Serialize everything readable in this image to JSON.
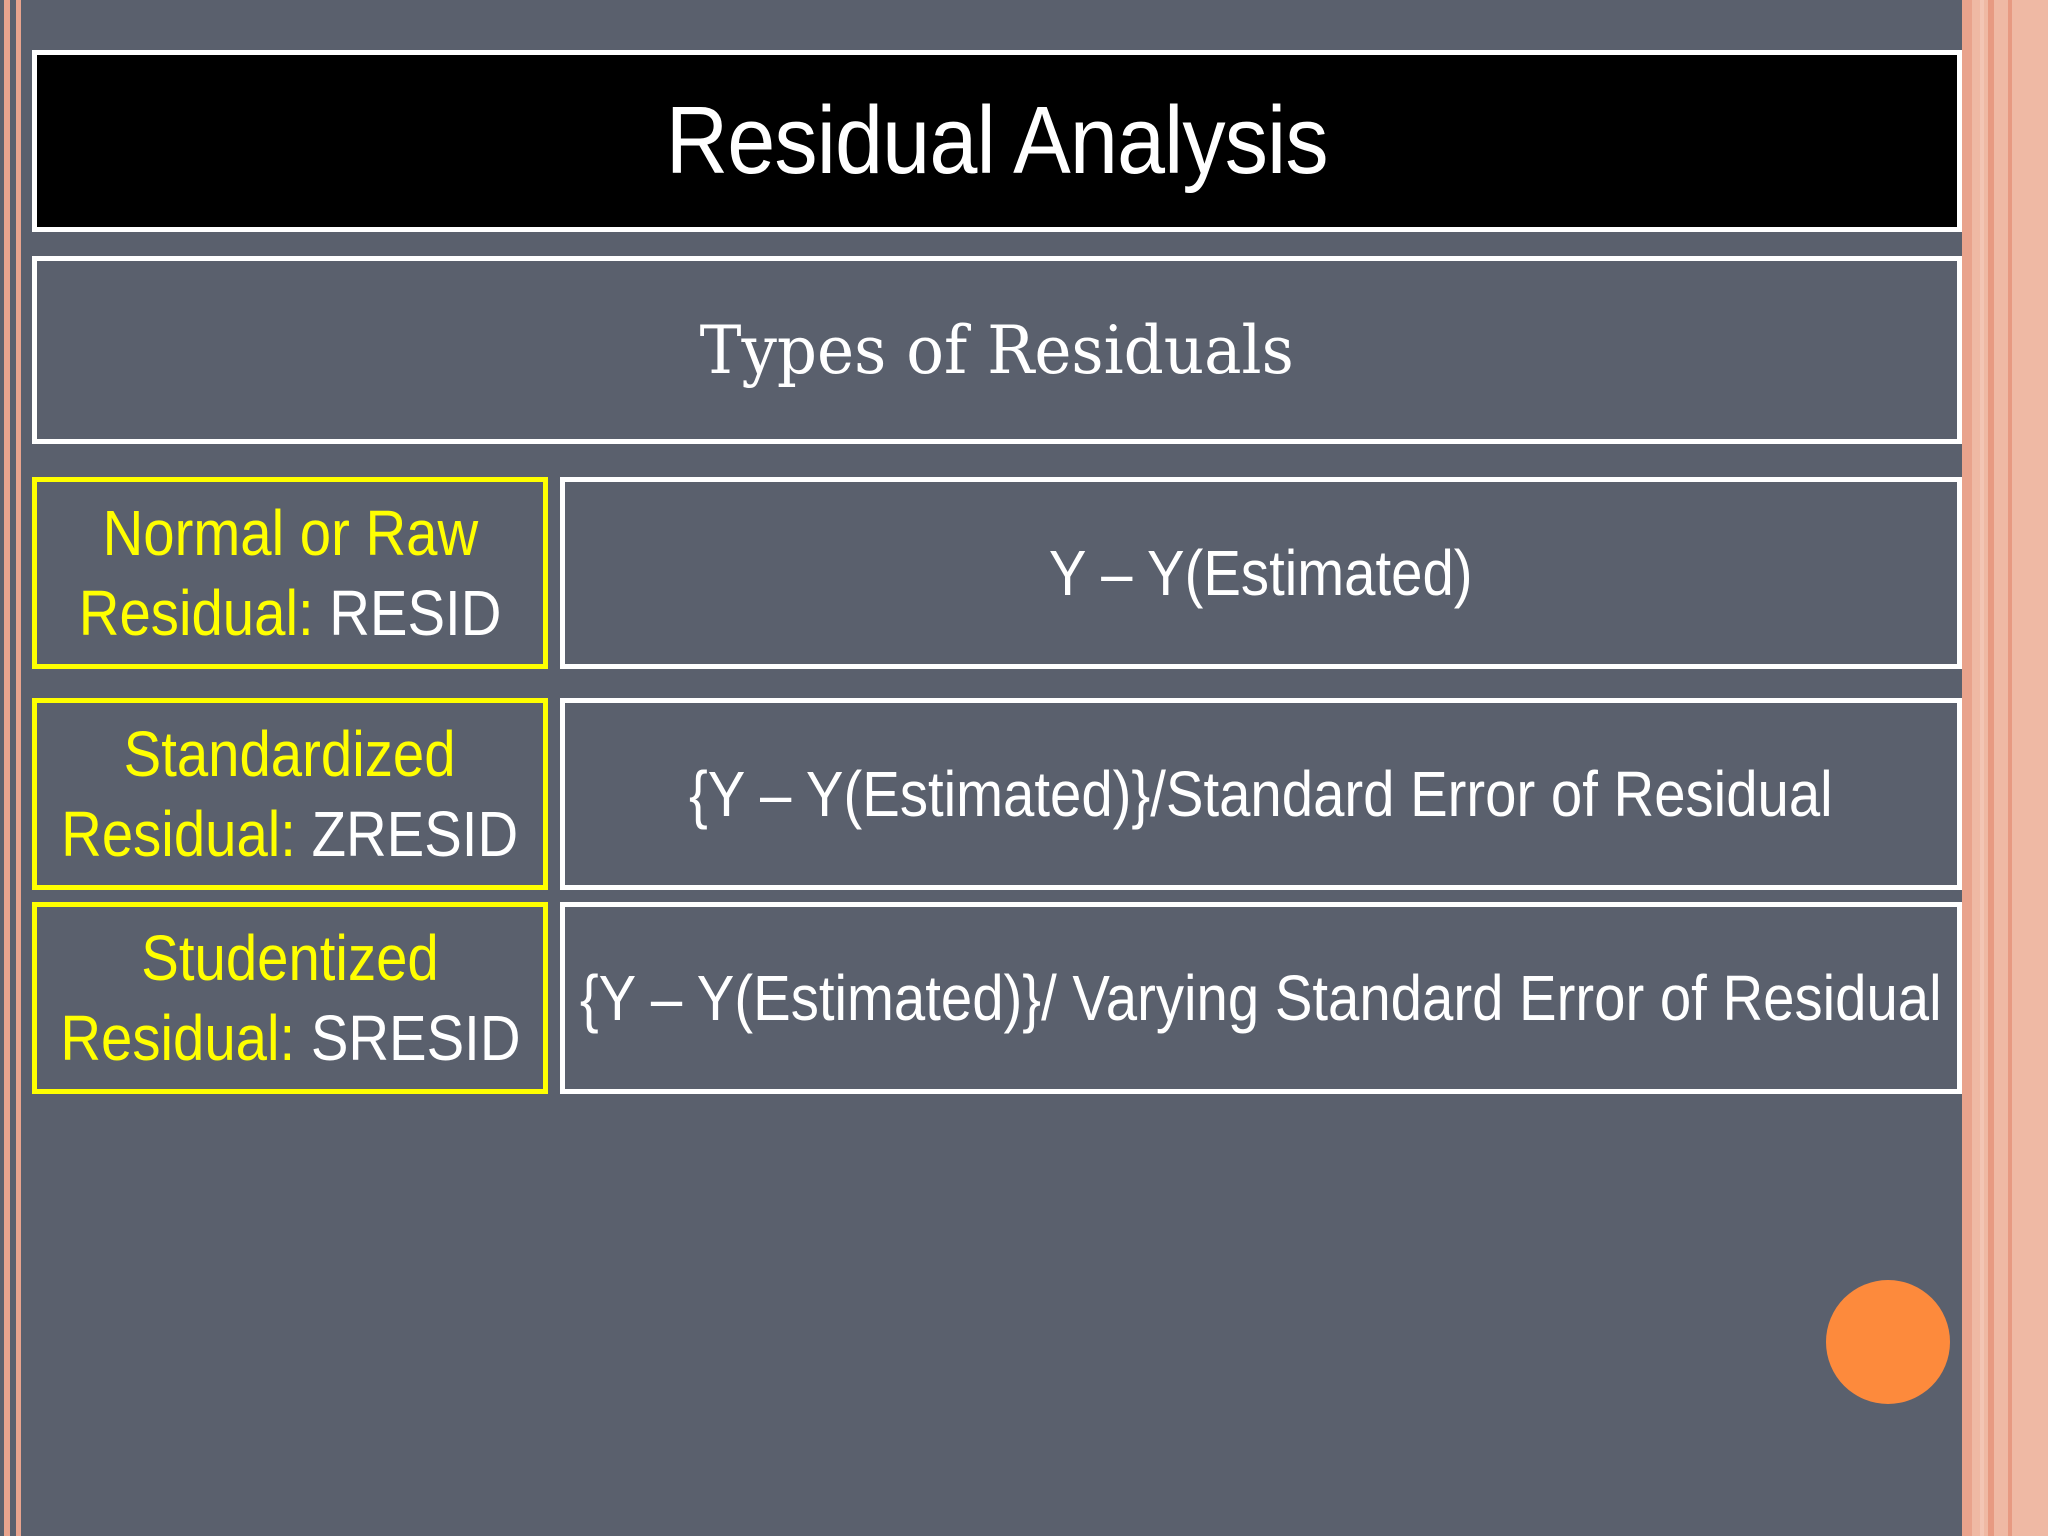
{
  "slide": {
    "title": "Residual Analysis",
    "subtitle": "Types of Residuals",
    "rows": [
      {
        "label_line1": "Normal or Raw",
        "label_line2_prefix": "Residual: ",
        "label_code": "RESID",
        "definition": "Y – Y(Estimated)"
      },
      {
        "label_line1": "Standardized",
        "label_line2_prefix": "Residual: ",
        "label_code": "ZRESID",
        "definition": "{Y – Y(Estimated)}/Standard Error of Residual"
      },
      {
        "label_line1": "Studentized",
        "label_line2_prefix": "Residual: ",
        "label_code": "SRESID",
        "definition": "{Y – Y(Estimated)}/ Varying Standard Error of Residual"
      }
    ]
  },
  "colors": {
    "background": "#5a606d",
    "title_bg": "#000000",
    "label_accent": "#ffff00",
    "text": "#ffffff",
    "orange_dot": "#fd8a3c",
    "border_peach": "#efb9a4"
  }
}
